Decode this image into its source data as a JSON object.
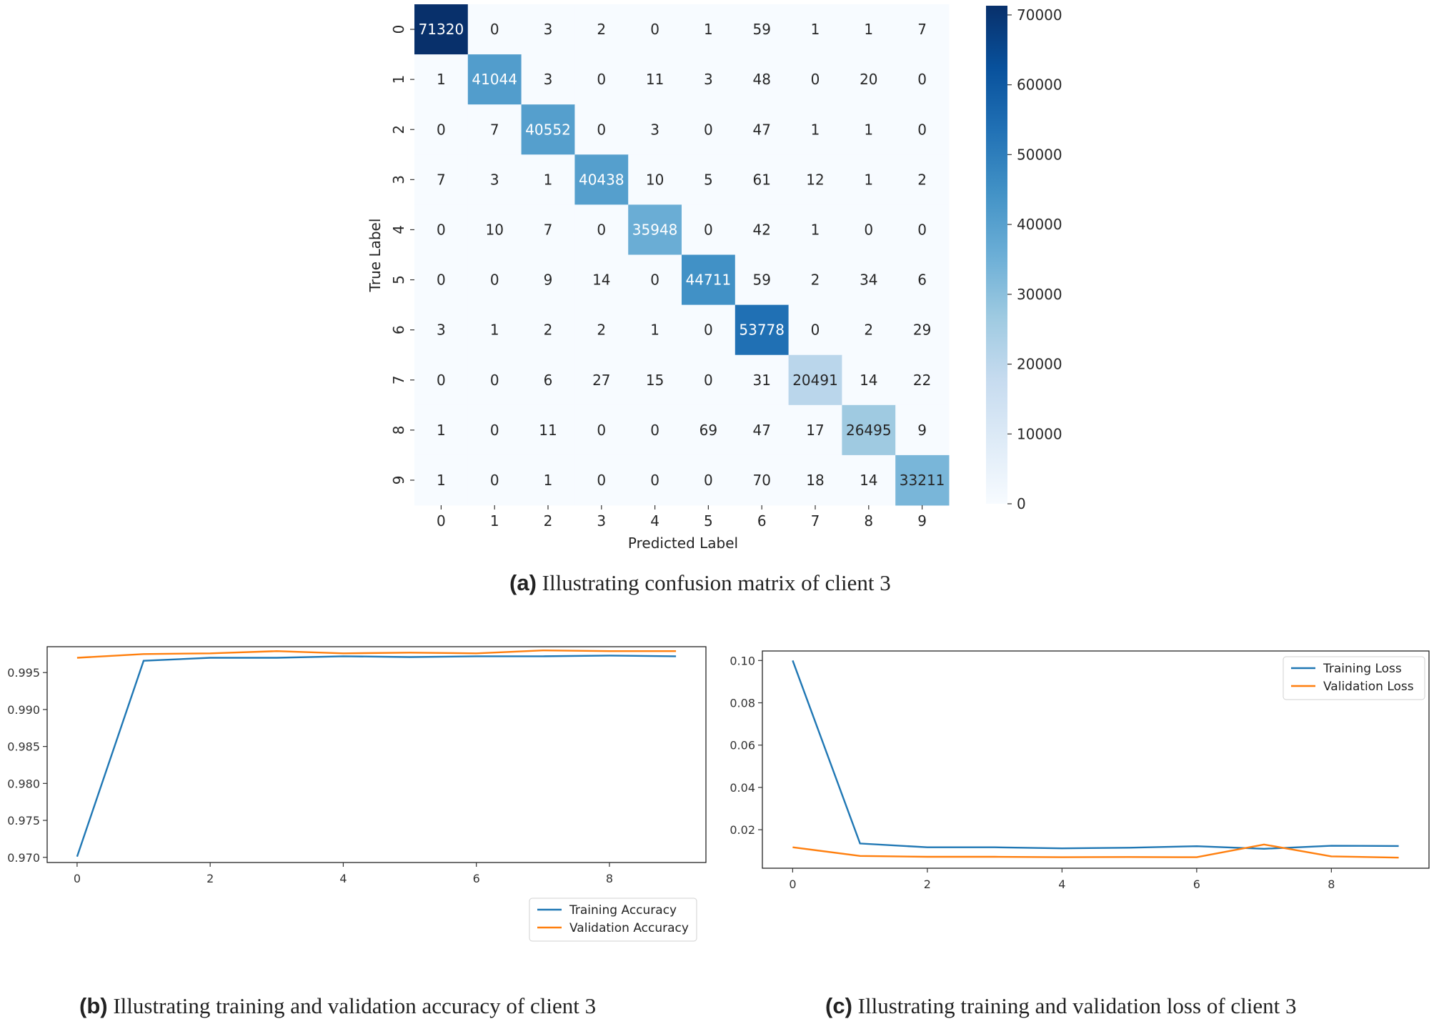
{
  "captions": {
    "a": {
      "tag": "(a)",
      "text": " Illustrating confusion matrix of client 3"
    },
    "b": {
      "tag": "(b)",
      "text": " Illustrating training and validation accuracy of client 3"
    },
    "c": {
      "tag": "(c)",
      "text": " Illustrating training and validation loss of client 3"
    }
  },
  "colors": {
    "training": "#1f77b4",
    "validation": "#ff7f0e",
    "cmap_low": "#f7fbff",
    "cmap_high": "#08306b"
  },
  "chart_data": [
    {
      "type": "heatmap",
      "xlabel": "Predicted Label",
      "ylabel": "True Label",
      "x_categories": [
        "0",
        "1",
        "2",
        "3",
        "4",
        "5",
        "6",
        "7",
        "8",
        "9"
      ],
      "y_categories": [
        "0",
        "1",
        "2",
        "3",
        "4",
        "5",
        "6",
        "7",
        "8",
        "9"
      ],
      "values": [
        [
          71320,
          0,
          3,
          2,
          0,
          1,
          59,
          1,
          1,
          7
        ],
        [
          1,
          41044,
          3,
          0,
          11,
          3,
          48,
          0,
          20,
          0
        ],
        [
          0,
          7,
          40552,
          0,
          3,
          0,
          47,
          1,
          1,
          0
        ],
        [
          7,
          3,
          1,
          40438,
          10,
          5,
          61,
          12,
          1,
          2
        ],
        [
          0,
          10,
          7,
          0,
          35948,
          0,
          42,
          1,
          0,
          0
        ],
        [
          0,
          0,
          9,
          14,
          0,
          44711,
          59,
          2,
          34,
          6
        ],
        [
          3,
          1,
          2,
          2,
          1,
          0,
          53778,
          0,
          2,
          29
        ],
        [
          0,
          0,
          6,
          27,
          15,
          0,
          31,
          20491,
          14,
          22
        ],
        [
          1,
          0,
          11,
          0,
          0,
          69,
          47,
          17,
          26495,
          9
        ],
        [
          1,
          0,
          1,
          0,
          0,
          0,
          70,
          18,
          14,
          33211
        ]
      ],
      "colorbar": {
        "range": [
          0,
          71320
        ],
        "ticks": [
          0,
          10000,
          20000,
          30000,
          40000,
          50000,
          60000,
          70000
        ]
      },
      "colormap": "Blues"
    },
    {
      "type": "line",
      "x": [
        0,
        1,
        2,
        3,
        4,
        5,
        6,
        7,
        8,
        9
      ],
      "series": [
        {
          "name": "Training Accuracy",
          "values": [
            0.9701,
            0.9966,
            0.997,
            0.997,
            0.9972,
            0.9971,
            0.9972,
            0.9972,
            0.9973,
            0.9972
          ]
        },
        {
          "name": "Validation Accuracy",
          "values": [
            0.997,
            0.9975,
            0.9976,
            0.9979,
            0.9976,
            0.9977,
            0.9976,
            0.998,
            0.9979,
            0.9979
          ]
        }
      ],
      "xlim": [
        -0.45,
        9.45
      ],
      "ylim": [
        0.9693,
        0.9985
      ],
      "xticks": [
        0,
        2,
        4,
        6,
        8
      ],
      "yticks": [
        0.97,
        0.975,
        0.98,
        0.985,
        0.99,
        0.995
      ],
      "ytick_labels": [
        "0.970",
        "0.975",
        "0.980",
        "0.985",
        "0.990",
        "0.995"
      ],
      "legend": "lower-right"
    },
    {
      "type": "line",
      "x": [
        0,
        1,
        2,
        3,
        4,
        5,
        6,
        7,
        8,
        9
      ],
      "series": [
        {
          "name": "Training Loss",
          "values": [
            0.1,
            0.0135,
            0.0117,
            0.0117,
            0.0112,
            0.0115,
            0.0122,
            0.011,
            0.0124,
            0.0123
          ]
        },
        {
          "name": "Validation Loss",
          "values": [
            0.0117,
            0.0076,
            0.0072,
            0.0072,
            0.007,
            0.0071,
            0.007,
            0.013,
            0.0074,
            0.0068
          ]
        }
      ],
      "xlim": [
        -0.45,
        9.45
      ],
      "ylim": [
        0.0018,
        0.1045
      ],
      "xticks": [
        0,
        2,
        4,
        6,
        8
      ],
      "yticks": [
        0.02,
        0.04,
        0.06,
        0.08,
        0.1
      ],
      "ytick_labels": [
        "0.02",
        "0.04",
        "0.06",
        "0.08",
        "0.10"
      ],
      "legend": "top-right"
    }
  ]
}
